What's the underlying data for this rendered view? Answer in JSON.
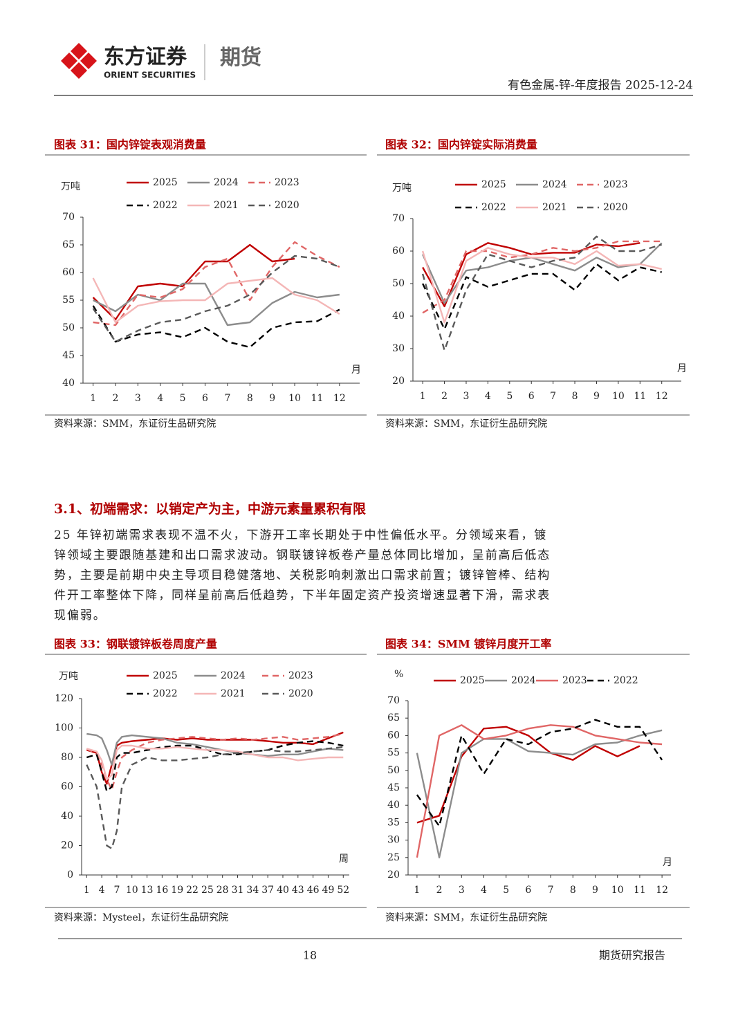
{
  "header": {
    "brand_cn": "东方证券",
    "brand_en": "ORIENT SECURITIES",
    "division": "期货",
    "report_title": "有色金属-锌-年度报告 2025-12-24"
  },
  "chart_data": [
    {
      "type": "line",
      "title": "图表 31：国内锌锭表观消费量",
      "y_unit": "万吨",
      "x_label": "月",
      "source": "资料来源：SMM，东证衍生品研究院",
      "x": [
        1,
        2,
        3,
        4,
        5,
        6,
        7,
        8,
        9,
        10,
        11,
        12
      ],
      "xlim": [
        0.55,
        12.9
      ],
      "xticks": [
        1,
        2,
        3,
        4,
        5,
        6,
        7,
        8,
        9,
        10,
        11,
        12
      ],
      "ylim": [
        40,
        70
      ],
      "yticks": [
        40,
        45,
        50,
        55,
        60,
        65,
        70
      ],
      "series": [
        {
          "name": "2025",
          "color": "#c00000",
          "dashed": false,
          "values": [
            55.5,
            51.5,
            57.5,
            58,
            57.5,
            62,
            62,
            65,
            62,
            62.5,
            null,
            null
          ]
        },
        {
          "name": "2024",
          "color": "#8c8c8c",
          "dashed": false,
          "values": [
            55,
            53,
            56,
            55,
            58,
            58,
            50.5,
            51,
            54.5,
            56.5,
            55.5,
            56
          ]
        },
        {
          "name": "2023",
          "color": "#e06666",
          "dashed": true,
          "values": [
            51,
            50.5,
            56,
            55.5,
            57,
            61,
            62.5,
            55,
            61,
            65.5,
            63,
            61
          ]
        },
        {
          "name": "2022",
          "color": "#000000",
          "dashed": true,
          "values": [
            54,
            47.5,
            48.8,
            49.2,
            48.3,
            50,
            47.5,
            46.5,
            50,
            51,
            51.2,
            53.3
          ]
        },
        {
          "name": "2021",
          "color": "#f4b6b6",
          "dashed": false,
          "values": [
            59,
            51,
            54,
            54.8,
            55,
            55,
            58,
            58.5,
            59,
            56,
            55,
            52.5
          ]
        },
        {
          "name": "2020",
          "color": "#595959",
          "dashed": true,
          "values": [
            53.5,
            47.5,
            49.5,
            51,
            51.5,
            53,
            54,
            56,
            60,
            63,
            62.5,
            61
          ]
        }
      ]
    },
    {
      "type": "line",
      "title": "图表 32：国内锌锭实际消费量",
      "y_unit": "万吨",
      "x_label": "月",
      "source": "资料来源：SMM，东证衍生品研究院",
      "x": [
        1,
        2,
        3,
        4,
        5,
        6,
        7,
        8,
        9,
        10,
        11,
        12
      ],
      "xlim": [
        0.55,
        12.9
      ],
      "xticks": [
        1,
        2,
        3,
        4,
        5,
        6,
        7,
        8,
        9,
        10,
        11,
        12
      ],
      "ylim": [
        20,
        70
      ],
      "yticks": [
        20,
        30,
        40,
        50,
        60,
        70
      ],
      "series": [
        {
          "name": "2025",
          "color": "#c00000",
          "dashed": false,
          "values": [
            55,
            43,
            59,
            62.5,
            61,
            59,
            59.5,
            59.5,
            62,
            61.5,
            62.5,
            null
          ]
        },
        {
          "name": "2024",
          "color": "#8c8c8c",
          "dashed": false,
          "values": [
            59,
            44,
            54,
            55,
            57,
            58,
            56,
            54,
            58,
            55,
            56,
            62.5
          ]
        },
        {
          "name": "2023",
          "color": "#e06666",
          "dashed": true,
          "values": [
            41,
            45,
            60,
            60,
            58,
            59,
            61,
            60,
            61,
            63,
            63,
            63
          ]
        },
        {
          "name": "2022",
          "color": "#000000",
          "dashed": true,
          "values": [
            50,
            36,
            52,
            49,
            51,
            53,
            53,
            48,
            56,
            51,
            55,
            53.5
          ]
        },
        {
          "name": "2021",
          "color": "#f4b6b6",
          "dashed": false,
          "values": [
            60,
            38,
            57,
            61,
            59,
            58,
            58,
            56,
            60,
            55.5,
            56,
            54.5
          ]
        },
        {
          "name": "2020",
          "color": "#595959",
          "dashed": true,
          "values": [
            53,
            29.5,
            48,
            59,
            57,
            55,
            57,
            58,
            64.5,
            60,
            60,
            62
          ]
        }
      ]
    },
    {
      "type": "line",
      "title": "图表 33：钢联镀锌板卷周度产量",
      "y_unit": "万吨",
      "x_label": "周",
      "source": "资料来源：Mysteel，东证衍生品研究院",
      "x": [
        1,
        3,
        4,
        5,
        6,
        7,
        8,
        10,
        13,
        16,
        19,
        22,
        25,
        28,
        31,
        34,
        37,
        40,
        43,
        46,
        49,
        52
      ],
      "xlim": [
        0,
        53.2
      ],
      "xticks": [
        1,
        4,
        7,
        10,
        13,
        16,
        19,
        22,
        25,
        28,
        31,
        34,
        37,
        40,
        43,
        46,
        49,
        52
      ],
      "ylim": [
        0,
        120
      ],
      "yticks": [
        0,
        20,
        40,
        60,
        80,
        100,
        120
      ],
      "series": [
        {
          "name": "2025",
          "color": "#c00000",
          "dashed": false,
          "values": [
            85,
            83,
            70,
            62,
            75,
            88,
            90,
            91,
            92,
            93,
            92,
            93,
            92,
            92,
            92,
            92,
            91,
            90,
            90,
            89,
            93,
            97
          ]
        },
        {
          "name": "2024",
          "color": "#8c8c8c",
          "dashed": false,
          "values": [
            96,
            95,
            93,
            85,
            75,
            90,
            94,
            95,
            94,
            93,
            90,
            89,
            87,
            85,
            83,
            82,
            81,
            82,
            82,
            84,
            86,
            85
          ]
        },
        {
          "name": "2023",
          "color": "#e06666",
          "dashed": true,
          "values": [
            86,
            82,
            75,
            65,
            58,
            70,
            80,
            85,
            90,
            92,
            93,
            94,
            93,
            92,
            93,
            92,
            93,
            94,
            92,
            93,
            94,
            96
          ]
        },
        {
          "name": "2022",
          "color": "#000000",
          "dashed": true,
          "values": [
            80,
            82,
            70,
            57,
            60,
            80,
            83,
            83,
            85,
            87,
            88,
            88,
            85,
            82,
            82,
            84,
            85,
            88,
            90,
            91,
            90,
            88
          ]
        },
        {
          "name": "2021",
          "color": "#f4b6b6",
          "dashed": false,
          "values": [
            86,
            84,
            78,
            65,
            68,
            85,
            88,
            88,
            86,
            86,
            87,
            86,
            85,
            85,
            84,
            82,
            80,
            80,
            78,
            79,
            80,
            80
          ]
        },
        {
          "name": "2020",
          "color": "#595959",
          "dashed": true,
          "values": [
            75,
            60,
            40,
            20,
            18,
            30,
            60,
            75,
            80,
            78,
            78,
            79,
            80,
            82,
            83,
            84,
            85,
            84,
            84,
            85,
            86,
            87
          ]
        }
      ]
    },
    {
      "type": "line",
      "title": "图表 34：SMM 镀锌月度开工率",
      "y_unit": "%",
      "x_label": "月",
      "source": "资料来源：SMM，东证衍生品研究院",
      "x": [
        1,
        2,
        3,
        4,
        5,
        6,
        7,
        8,
        9,
        10,
        11,
        12
      ],
      "xlim": [
        0.6,
        12.4
      ],
      "xticks": [
        1,
        2,
        3,
        4,
        5,
        6,
        7,
        8,
        9,
        10,
        11,
        12
      ],
      "ylim": [
        20,
        70
      ],
      "yticks": [
        20,
        25,
        30,
        35,
        40,
        45,
        50,
        55,
        60,
        65,
        70
      ],
      "series": [
        {
          "name": "2025",
          "color": "#c00000",
          "dashed": false,
          "values": [
            35,
            37,
            54,
            62,
            62.5,
            60,
            55,
            53,
            57,
            54,
            57,
            null
          ]
        },
        {
          "name": "2024",
          "color": "#8c8c8c",
          "dashed": false,
          "values": [
            55,
            25,
            55,
            59,
            59,
            55.5,
            55,
            54.5,
            57.5,
            58,
            60,
            61.5
          ]
        },
        {
          "name": "2023",
          "color": "#e06666",
          "dashed": false,
          "values": [
            25,
            60,
            63,
            59,
            60,
            62,
            63,
            62.5,
            60,
            59,
            58,
            57.5
          ]
        },
        {
          "name": "2022",
          "color": "#000000",
          "dashed": true,
          "values": [
            43,
            34,
            60,
            49,
            59,
            57.5,
            61,
            62,
            64.5,
            62.5,
            62.5,
            53
          ]
        }
      ]
    }
  ],
  "section": {
    "heading": "3.1、初端需求：以销定产为主，中游元素量累积有限",
    "body": "25 年锌初端需求表现不温不火，下游开工率长期处于中性偏低水平。分领域来看，镀锌领域主要跟随基建和出口需求波动。钢联镀锌板卷产量总体同比增加，呈前高后低态势，主要是前期中央主导项目稳健落地、关税影响刺激出口需求前置；镀锌管棒、结构件开工率整体下降，同样呈前高后低趋势，下半年固定资产投资增速显著下滑，需求表现偏弱。"
  },
  "footer": {
    "page": "18",
    "label": "期货研究报告"
  }
}
